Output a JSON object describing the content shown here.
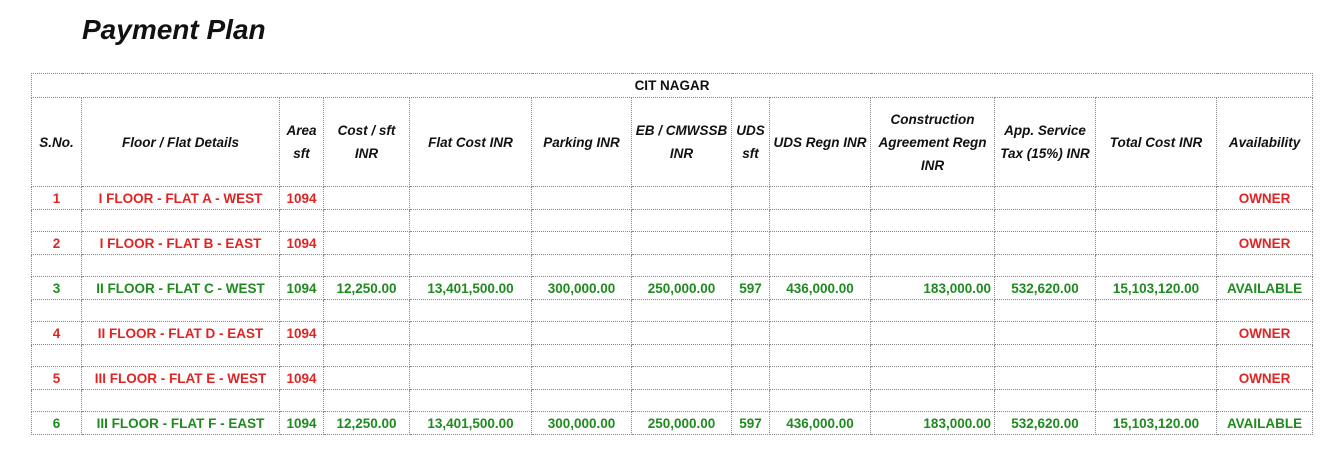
{
  "title": "Payment Plan",
  "project": "CIT NAGAR",
  "columns": [
    "S.No.",
    "Floor / Flat Details",
    "Area sft",
    "Cost / sft INR",
    "Flat Cost INR",
    "Parking INR",
    "EB / CMWSSB INR",
    "UDS sft",
    "UDS Regn INR",
    "Construction Agreement Regn INR",
    "App. Service Tax (15%) INR",
    "Total Cost INR",
    "Availability"
  ],
  "colors": {
    "owner": "#e02424",
    "available": "#1f8a1f"
  },
  "rows": [
    {
      "cells": [
        "1",
        "I FLOOR - FLAT A - WEST",
        "1094",
        "",
        "",
        "",
        "",
        "",
        "",
        "",
        "",
        "",
        "OWNER"
      ],
      "status": "owner"
    },
    {
      "cells": [
        "2",
        "I FLOOR - FLAT B - EAST",
        "1094",
        "",
        "",
        "",
        "",
        "",
        "",
        "",
        "",
        "",
        "OWNER"
      ],
      "status": "owner"
    },
    {
      "cells": [
        "3",
        "II FLOOR - FLAT C - WEST",
        "1094",
        "12,250.00",
        "13,401,500.00",
        "300,000.00",
        "250,000.00",
        "597",
        "436,000.00",
        "183,000.00",
        "532,620.00",
        "15,103,120.00",
        "AVAILABLE"
      ],
      "status": "available"
    },
    {
      "cells": [
        "4",
        "II FLOOR - FLAT D - EAST",
        "1094",
        "",
        "",
        "",
        "",
        "",
        "",
        "",
        "",
        "",
        "OWNER"
      ],
      "status": "owner"
    },
    {
      "cells": [
        "5",
        "III FLOOR - FLAT E - WEST",
        "1094",
        "",
        "",
        "",
        "",
        "",
        "",
        "",
        "",
        "",
        "OWNER"
      ],
      "status": "owner"
    },
    {
      "cells": [
        "6",
        "III FLOOR - FLAT F - EAST",
        "1094",
        "12,250.00",
        "13,401,500.00",
        "300,000.00",
        "250,000.00",
        "597",
        "436,000.00",
        "183,000.00",
        "532,620.00",
        "15,103,120.00",
        "AVAILABLE"
      ],
      "status": "available"
    }
  ]
}
